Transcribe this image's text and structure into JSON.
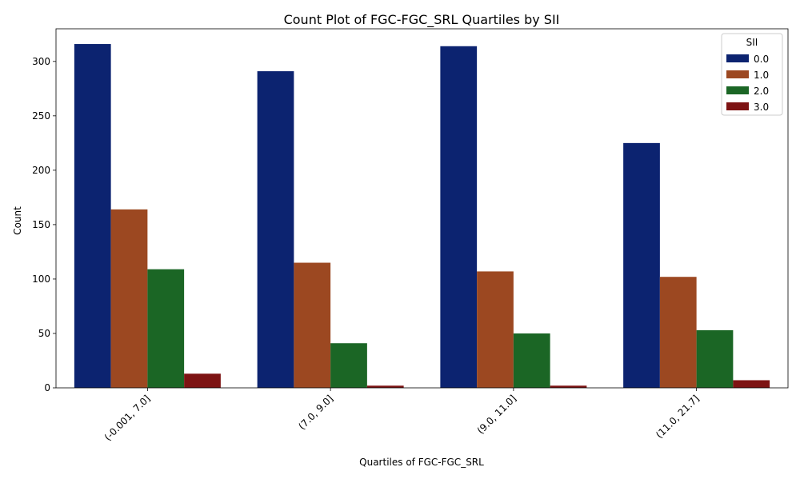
{
  "chart_data": {
    "type": "bar",
    "title": "Count Plot of FGC-FGC_SRL Quartiles by SII",
    "xlabel": "Quartiles of FGC-FGC_SRL",
    "ylabel": "Count",
    "categories": [
      "(-0.001, 7.0]",
      "(7.0, 9.0]",
      "(9.0, 11.0]",
      "(11.0, 21.7]"
    ],
    "ylim": [
      0,
      330
    ],
    "yticks": [
      0,
      50,
      100,
      150,
      200,
      250,
      300
    ],
    "legend": {
      "title": "SII",
      "position": "top-right"
    },
    "grid": false,
    "series": [
      {
        "name": "0.0",
        "color": "#0c2370",
        "values": [
          316,
          291,
          314,
          225
        ]
      },
      {
        "name": "1.0",
        "color": "#9c4821",
        "values": [
          164,
          115,
          107,
          102
        ]
      },
      {
        "name": "2.0",
        "color": "#1b6625",
        "values": [
          109,
          41,
          50,
          53
        ]
      },
      {
        "name": "3.0",
        "color": "#7d1313",
        "values": [
          13,
          2,
          2,
          7
        ]
      }
    ]
  }
}
